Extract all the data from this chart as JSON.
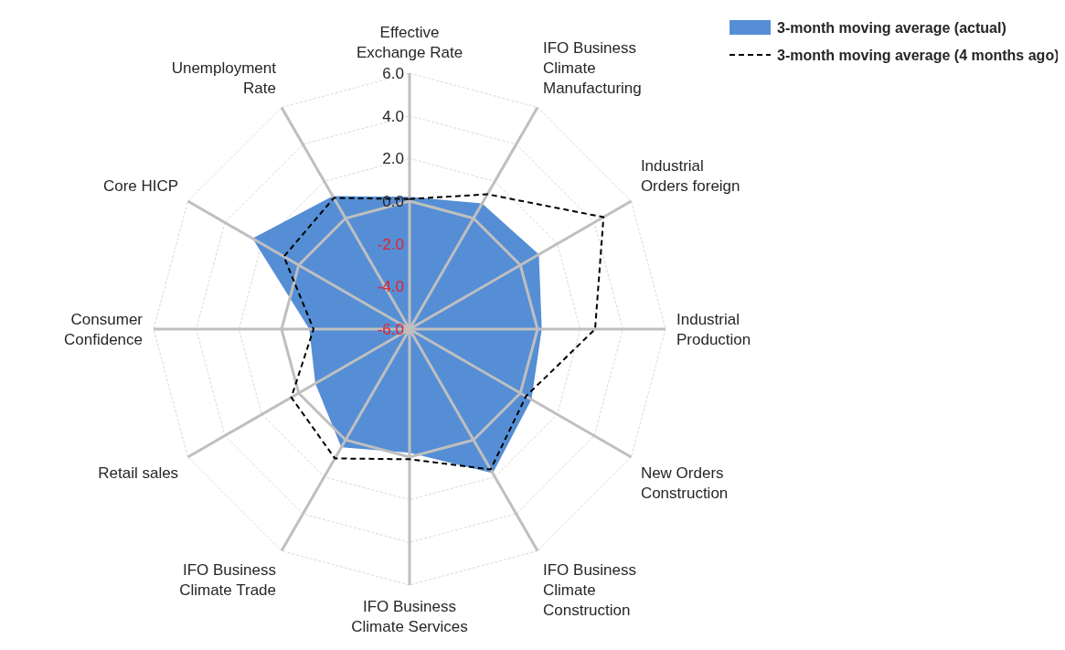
{
  "chart_data": {
    "type": "radar",
    "categories": [
      "Effective Exchange Rate",
      "IFO Business Climate Manufacturing",
      "Industrial Orders foreign",
      "Industrial Production",
      "New Orders Construction",
      "IFO Business Climate Construction",
      "IFO Business Climate Services",
      "IFO Business Climate Trade",
      "Retail sales",
      "Consumer Confidence",
      "Core HICP",
      "Unemployment Rate"
    ],
    "series": [
      {
        "name": "3-month moving average (actual)",
        "color": "#558ed5",
        "values": [
          0.2,
          0.8,
          1.0,
          0.2,
          0.6,
          1.8,
          -0.2,
          0.4,
          -0.9,
          -1.3,
          2.5,
          1.2
        ]
      },
      {
        "name": "3-month moving average (4 months ago)",
        "line_style": "dashed",
        "color": "#000000",
        "values": [
          0.1,
          1.3,
          4.5,
          2.7,
          0.3,
          1.6,
          0.1,
          1.0,
          0.4,
          -1.5,
          0.8,
          1.1
        ]
      }
    ],
    "ylim": [
      -6,
      6
    ],
    "yticks": [
      {
        "value": -6,
        "label": "-6.0"
      },
      {
        "value": -4,
        "label": "-4.0"
      },
      {
        "value": -2,
        "label": "-2.0"
      },
      {
        "value": 0,
        "label": "0.0"
      },
      {
        "value": 2,
        "label": "2.0"
      },
      {
        "value": 4,
        "label": "4.0"
      },
      {
        "value": 6,
        "label": "6.0"
      }
    ],
    "grid": true,
    "legend": "top right"
  }
}
